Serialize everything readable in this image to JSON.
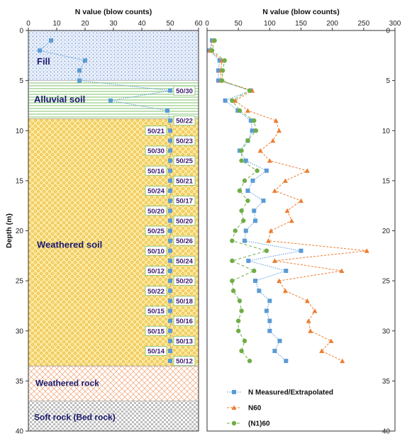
{
  "colors": {
    "n_measured": "#5b9bd5",
    "n60": "#ed7d31",
    "n1_60": "#70ad47",
    "fill_layer": "#dce8f7",
    "alluvial_line": "#7cc06a",
    "weathered_soil": "#fde9a0",
    "weathered_soil_dot": "#e8b830",
    "weathered_rock_line": "#f0a070",
    "soft_rock": "#c8c8c8"
  },
  "chart_data": [
    {
      "type": "line",
      "panel": "left",
      "title": "",
      "xlabel": "N value (blow counts)",
      "ylabel": "Depth (m)",
      "xlim": [
        0,
        60
      ],
      "ylim": [
        0,
        40
      ],
      "y_inverted": true,
      "x_ticks": [
        "0",
        "10",
        "20",
        "30",
        "40",
        "50",
        "60"
      ],
      "y_ticks": [
        "0",
        "5",
        "10",
        "15",
        "20",
        "25",
        "30",
        "35",
        "40"
      ],
      "layers": [
        {
          "name": "Fill",
          "top": 0,
          "bottom": 5,
          "pattern": "dots-blue"
        },
        {
          "name": "Alluvial soil",
          "top": 5,
          "bottom": 8.8,
          "pattern": "lines-green"
        },
        {
          "name": "Weathered soil",
          "top": 8.8,
          "bottom": 33.5,
          "pattern": "dots-yellow"
        },
        {
          "name": "Weathered rock",
          "top": 33.5,
          "bottom": 37,
          "pattern": "hatch-orange"
        },
        {
          "name": "Soft rock (Bed rock)",
          "top": 37,
          "bottom": 40,
          "pattern": "checker-gray"
        }
      ],
      "series": [
        {
          "name": "N Measured/Extrapolated",
          "points": [
            {
              "x": 8,
              "y": 1
            },
            {
              "x": 4,
              "y": 2
            },
            {
              "x": 20,
              "y": 3
            },
            {
              "x": 18,
              "y": 4
            },
            {
              "x": 18,
              "y": 5
            },
            {
              "x": 50,
              "y": 6
            },
            {
              "x": 29,
              "y": 7
            },
            {
              "x": 49,
              "y": 8
            },
            {
              "x": 50,
              "y": 9
            },
            {
              "x": 50,
              "y": 10
            },
            {
              "x": 50,
              "y": 11
            },
            {
              "x": 50,
              "y": 12
            },
            {
              "x": 50,
              "y": 13
            },
            {
              "x": 50,
              "y": 14
            },
            {
              "x": 50,
              "y": 15
            },
            {
              "x": 50,
              "y": 16
            },
            {
              "x": 50,
              "y": 17
            },
            {
              "x": 50,
              "y": 18
            },
            {
              "x": 50,
              "y": 19
            },
            {
              "x": 50,
              "y": 20
            },
            {
              "x": 50,
              "y": 21
            },
            {
              "x": 50,
              "y": 22
            },
            {
              "x": 50,
              "y": 23
            },
            {
              "x": 50,
              "y": 24
            },
            {
              "x": 50,
              "y": 25
            },
            {
              "x": 50,
              "y": 26
            },
            {
              "x": 50,
              "y": 27
            },
            {
              "x": 50,
              "y": 28
            },
            {
              "x": 50,
              "y": 29
            },
            {
              "x": 50,
              "y": 30
            },
            {
              "x": 50,
              "y": 31
            },
            {
              "x": 50,
              "y": 32
            },
            {
              "x": 50,
              "y": 33
            }
          ]
        }
      ],
      "annotations": [
        {
          "text": "50/30",
          "depth": 6,
          "side": "right"
        },
        {
          "text": "50/22",
          "depth": 9,
          "side": "right"
        },
        {
          "text": "50/21",
          "depth": 10,
          "side": "left"
        },
        {
          "text": "50/23",
          "depth": 11,
          "side": "right"
        },
        {
          "text": "50/30",
          "depth": 12,
          "side": "left"
        },
        {
          "text": "50/25",
          "depth": 13,
          "side": "right"
        },
        {
          "text": "50/16",
          "depth": 14,
          "side": "left"
        },
        {
          "text": "50/21",
          "depth": 15,
          "side": "right"
        },
        {
          "text": "50/24",
          "depth": 16,
          "side": "left"
        },
        {
          "text": "50/17",
          "depth": 17,
          "side": "right"
        },
        {
          "text": "50/20",
          "depth": 18,
          "side": "left"
        },
        {
          "text": "50/20",
          "depth": 19,
          "side": "right"
        },
        {
          "text": "50/25",
          "depth": 20,
          "side": "left"
        },
        {
          "text": "50/26",
          "depth": 21,
          "side": "right"
        },
        {
          "text": "50/10",
          "depth": 22,
          "side": "left"
        },
        {
          "text": "50/24",
          "depth": 23,
          "side": "right"
        },
        {
          "text": "50/12",
          "depth": 24,
          "side": "left"
        },
        {
          "text": "50/20",
          "depth": 25,
          "side": "right"
        },
        {
          "text": "50/22",
          "depth": 26,
          "side": "left"
        },
        {
          "text": "50/18",
          "depth": 27,
          "side": "right"
        },
        {
          "text": "50/15",
          "depth": 28,
          "side": "left"
        },
        {
          "text": "50/16",
          "depth": 29,
          "side": "right"
        },
        {
          "text": "50/15",
          "depth": 30,
          "side": "left"
        },
        {
          "text": "50/13",
          "depth": 31,
          "side": "right"
        },
        {
          "text": "50/14",
          "depth": 32,
          "side": "left"
        },
        {
          "text": "50/12",
          "depth": 33,
          "side": "right"
        }
      ]
    },
    {
      "type": "line",
      "panel": "right",
      "title": "",
      "xlabel": "N value (blow counts)",
      "ylabel": "",
      "xlim": [
        0,
        300
      ],
      "ylim": [
        0,
        40
      ],
      "y_inverted": true,
      "x_ticks": [
        "0",
        "50",
        "100",
        "150",
        "200",
        "250",
        "300"
      ],
      "y_ticks": [
        "0",
        "5",
        "10",
        "15",
        "20",
        "25",
        "30",
        "35",
        "40"
      ],
      "legend_position": "bottom-right",
      "series": [
        {
          "name": "N Measured/Extrapolated",
          "style": "dotted",
          "marker": "square",
          "points": [
            {
              "x": 8,
              "y": 1
            },
            {
              "x": 4,
              "y": 2
            },
            {
              "x": 20,
              "y": 3
            },
            {
              "x": 18,
              "y": 4
            },
            {
              "x": 18,
              "y": 5
            },
            {
              "x": 70,
              "y": 6
            },
            {
              "x": 29,
              "y": 7
            },
            {
              "x": 49,
              "y": 8
            },
            {
              "x": 70,
              "y": 9
            },
            {
              "x": 72,
              "y": 10
            },
            {
              "x": 65,
              "y": 11
            },
            {
              "x": 52,
              "y": 12
            },
            {
              "x": 62,
              "y": 13
            },
            {
              "x": 95,
              "y": 14
            },
            {
              "x": 73,
              "y": 15
            },
            {
              "x": 65,
              "y": 16
            },
            {
              "x": 90,
              "y": 17
            },
            {
              "x": 75,
              "y": 18
            },
            {
              "x": 77,
              "y": 19
            },
            {
              "x": 62,
              "y": 20
            },
            {
              "x": 60,
              "y": 21
            },
            {
              "x": 150,
              "y": 22
            },
            {
              "x": 66,
              "y": 23
            },
            {
              "x": 126,
              "y": 24
            },
            {
              "x": 77,
              "y": 25
            },
            {
              "x": 83,
              "y": 26
            },
            {
              "x": 100,
              "y": 27
            },
            {
              "x": 95,
              "y": 28
            },
            {
              "x": 100,
              "y": 29
            },
            {
              "x": 100,
              "y": 30
            },
            {
              "x": 116,
              "y": 31
            },
            {
              "x": 108,
              "y": 32
            },
            {
              "x": 126,
              "y": 33
            }
          ]
        },
        {
          "name": "N60",
          "style": "dashed",
          "marker": "triangle",
          "points": [
            {
              "x": 10,
              "y": 1
            },
            {
              "x": 5,
              "y": 2
            },
            {
              "x": 24,
              "y": 3
            },
            {
              "x": 22,
              "y": 4
            },
            {
              "x": 22,
              "y": 5
            },
            {
              "x": 72,
              "y": 6
            },
            {
              "x": 45,
              "y": 7
            },
            {
              "x": 65,
              "y": 8
            },
            {
              "x": 110,
              "y": 9
            },
            {
              "x": 115,
              "y": 10
            },
            {
              "x": 105,
              "y": 11
            },
            {
              "x": 85,
              "y": 12
            },
            {
              "x": 100,
              "y": 13
            },
            {
              "x": 160,
              "y": 14
            },
            {
              "x": 125,
              "y": 15
            },
            {
              "x": 108,
              "y": 16
            },
            {
              "x": 150,
              "y": 17
            },
            {
              "x": 128,
              "y": 18
            },
            {
              "x": 135,
              "y": 19
            },
            {
              "x": 102,
              "y": 20
            },
            {
              "x": 98,
              "y": 21
            },
            {
              "x": 255,
              "y": 22
            },
            {
              "x": 108,
              "y": 23
            },
            {
              "x": 215,
              "y": 24
            },
            {
              "x": 115,
              "y": 25
            },
            {
              "x": 125,
              "y": 26
            },
            {
              "x": 160,
              "y": 27
            },
            {
              "x": 172,
              "y": 28
            },
            {
              "x": 162,
              "y": 29
            },
            {
              "x": 165,
              "y": 30
            },
            {
              "x": 198,
              "y": 31
            },
            {
              "x": 183,
              "y": 32
            },
            {
              "x": 216,
              "y": 33
            }
          ]
        },
        {
          "name": "(N1)60",
          "style": "dashed",
          "marker": "circle",
          "points": [
            {
              "x": 12,
              "y": 1
            },
            {
              "x": 8,
              "y": 2
            },
            {
              "x": 28,
              "y": 3
            },
            {
              "x": 25,
              "y": 4
            },
            {
              "x": 24,
              "y": 5
            },
            {
              "x": 68,
              "y": 6
            },
            {
              "x": 40,
              "y": 7
            },
            {
              "x": 52,
              "y": 8
            },
            {
              "x": 75,
              "y": 9
            },
            {
              "x": 78,
              "y": 10
            },
            {
              "x": 65,
              "y": 11
            },
            {
              "x": 55,
              "y": 12
            },
            {
              "x": 55,
              "y": 13
            },
            {
              "x": 80,
              "y": 14
            },
            {
              "x": 60,
              "y": 15
            },
            {
              "x": 52,
              "y": 16
            },
            {
              "x": 65,
              "y": 17
            },
            {
              "x": 55,
              "y": 18
            },
            {
              "x": 58,
              "y": 19
            },
            {
              "x": 45,
              "y": 20
            },
            {
              "x": 40,
              "y": 21
            },
            {
              "x": 95,
              "y": 22
            },
            {
              "x": 40,
              "y": 23
            },
            {
              "x": 75,
              "y": 24
            },
            {
              "x": 40,
              "y": 25
            },
            {
              "x": 42,
              "y": 26
            },
            {
              "x": 52,
              "y": 27
            },
            {
              "x": 55,
              "y": 28
            },
            {
              "x": 50,
              "y": 29
            },
            {
              "x": 50,
              "y": 30
            },
            {
              "x": 60,
              "y": 31
            },
            {
              "x": 55,
              "y": 32
            },
            {
              "x": 68,
              "y": 33
            }
          ]
        }
      ]
    }
  ]
}
